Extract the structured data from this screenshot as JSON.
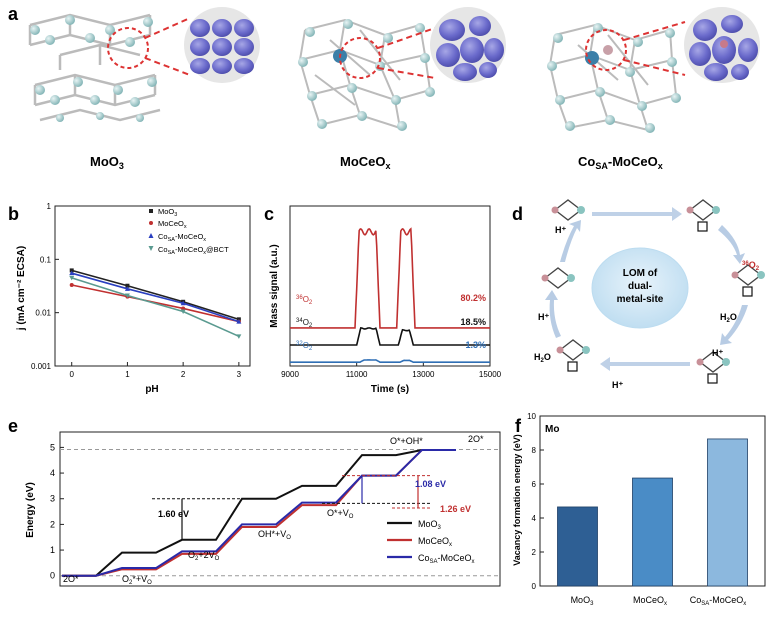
{
  "panel_labels": [
    "a",
    "b",
    "c",
    "d",
    "e",
    "f"
  ],
  "panel_a": {
    "structures": [
      {
        "label_main": "MoO",
        "label_sub": "3",
        "label_main2": "",
        "label_sub2": ""
      },
      {
        "label_main": "MoCeO",
        "label_sub": "x",
        "label_main2": "",
        "label_sub2": ""
      },
      {
        "label_main": "Co",
        "label_sub": "SA",
        "label_main2": "-MoCeO",
        "label_sub2": "x"
      }
    ]
  },
  "panel_b": {
    "ylabel": "j (mA cm⁻² ECSA)",
    "xlabel": "pH",
    "yticks": [
      "0.001",
      "0.01",
      "0.1",
      "1"
    ],
    "xticks": [
      "0",
      "1",
      "2",
      "3"
    ],
    "legend": [
      {
        "main": "MoO",
        "sub": "3",
        "tail": "",
        "color": "#222222",
        "marker": "square"
      },
      {
        "main": "MoCeO",
        "sub": "x",
        "tail": "",
        "color": "#c03030",
        "marker": "circle"
      },
      {
        "main": "Co",
        "sub": "SA",
        "tail": "-MoCeO",
        "tail_sub": "x",
        "color": "#2a3fc0",
        "marker": "triangle"
      },
      {
        "main": "Co",
        "sub": "SA",
        "tail": "-MoCeO",
        "tail_sub": "x",
        "tail2": "@BCT",
        "color": "#5a9a90",
        "marker": "triangle-down"
      }
    ]
  },
  "panel_c": {
    "ylabel": "Mass signal (a.u.)",
    "xlabel": "Time (s)",
    "xticks": [
      "9000",
      "11000",
      "13000",
      "15000"
    ],
    "traces": [
      {
        "sup": "36",
        "name": "O",
        "sub": "2",
        "pct": "80.2%",
        "color": "#c03030"
      },
      {
        "sup": "34",
        "name": "O",
        "sub": "2",
        "pct": "18.5%",
        "color": "#111111"
      },
      {
        "sup": "32",
        "name": "O",
        "sub": "2",
        "pct": "1.3%",
        "color": "#2f6fb5"
      }
    ]
  },
  "panel_d": {
    "center_text": [
      "LOM of",
      "dual-",
      "metal-site"
    ],
    "labels": {
      "h1": "H⁺",
      "h2": "H⁺",
      "h3": "H⁺",
      "h4": "H⁺",
      "o2_sup": "36",
      "o2": "O",
      "o2_sub": "2",
      "h2o_a": "H",
      "h2o_sub": "2",
      "h2o_b": "O"
    }
  },
  "panel_e": {
    "ylabel": "Energy (eV)",
    "yticks": [
      "0",
      "1",
      "2",
      "3",
      "4",
      "5"
    ],
    "annotations": {
      "start": "2O*",
      "end": "2O*",
      "o2v": "O",
      "o2v_sub": "2",
      "o2v_tail": "*+V",
      "o2v_tail_sub": "O",
      "o22v": "O",
      "o22v_sub": "2",
      "o22v_tail": "+2V",
      "o22v_tail_sub": "O",
      "ohv": "OH*+V",
      "ohv_sub": "O",
      "ov": "O*+V",
      "ov_sub": "O",
      "ooh": "O*+OH*",
      "d160": "1.60 eV",
      "d108": "1.08 eV",
      "d126": "1.26 eV"
    },
    "legend": [
      {
        "main": "MoO",
        "sub": "3",
        "tail": "",
        "color": "#111111"
      },
      {
        "main": "MoCeO",
        "sub": "x",
        "tail": "",
        "color": "#c03030"
      },
      {
        "main": "Co",
        "sub": "SA",
        "tail": "-MoCeO",
        "tail_sub": "x",
        "color": "#2a2aa8"
      }
    ]
  },
  "panel_f": {
    "tag": "Mo",
    "ylabel": "Vacancy formation energy (eV)",
    "yticks": [
      "0",
      "2",
      "4",
      "6",
      "8",
      "10"
    ],
    "categories": [
      {
        "main": "MoO",
        "sub": "3",
        "tail": ""
      },
      {
        "main": "MoCeO",
        "sub": "x",
        "tail": ""
      },
      {
        "main": "Co",
        "sub": "SA",
        "tail": "-MoCeO",
        "tail_sub": "x"
      }
    ]
  },
  "chart_data": [
    {
      "type": "line",
      "panel": "b",
      "xlabel": "pH",
      "ylabel": "j (mA cm-2 ECSA)",
      "yscale": "log",
      "ylim": [
        0.001,
        1
      ],
      "xlim": [
        -0.3,
        3.2
      ],
      "x": [
        0,
        1,
        2,
        3
      ],
      "series": [
        {
          "name": "MoO3",
          "values": [
            0.062,
            0.032,
            0.016,
            0.0075
          ]
        },
        {
          "name": "MoCeOx",
          "values": [
            0.033,
            0.02,
            0.012,
            0.0068
          ]
        },
        {
          "name": "CoSA-MoCeOx",
          "values": [
            0.055,
            0.028,
            0.015,
            0.0068
          ]
        },
        {
          "name": "CoSA-MoCeOx@BCT",
          "values": [
            0.045,
            0.021,
            0.0105,
            0.0036
          ]
        }
      ]
    },
    {
      "type": "line",
      "panel": "c",
      "xlabel": "Time (s)",
      "ylabel": "Mass signal (a.u.)",
      "xlim": [
        9000,
        15000
      ],
      "series": [
        {
          "name": "36O2",
          "pct": 80.2,
          "baseline": 1.0,
          "peaks": [
            {
              "start": 10950,
              "end": 11700,
              "height": 2.6
            },
            {
              "start": 12200,
              "end": 12750,
              "height": 2.6
            }
          ]
        },
        {
          "name": "34O2",
          "pct": 18.5,
          "baseline": 0.55,
          "peaks": [
            {
              "start": 11000,
              "end": 11700,
              "height": 0.45
            },
            {
              "start": 12250,
              "end": 12700,
              "height": 0.4
            }
          ]
        },
        {
          "name": "32O2",
          "pct": 1.3,
          "baseline": 0.1,
          "peaks": [
            {
              "start": 11100,
              "end": 11700,
              "height": 0.06
            },
            {
              "start": 12300,
              "end": 12700,
              "height": 0.05
            }
          ]
        }
      ]
    },
    {
      "type": "line",
      "panel": "e",
      "ylabel": "Energy (eV)",
      "ylim": [
        -0.4,
        5.6
      ],
      "series": [
        {
          "name": "MoO3",
          "levels": [
            0,
            0.9,
            1.4,
            3.0,
            3.5,
            4.7,
            4.9
          ]
        },
        {
          "name": "MoCeOx",
          "levels": [
            0,
            0.25,
            0.85,
            1.9,
            2.75,
            3.9,
            4.9
          ]
        },
        {
          "name": "CoSA-MoCeOx",
          "levels": [
            0,
            0.3,
            0.95,
            2.0,
            2.85,
            3.9,
            4.9
          ]
        }
      ]
    },
    {
      "type": "bar",
      "panel": "f",
      "ylabel": "Vacancy formation energy (eV)",
      "ylim": [
        0,
        10
      ],
      "categories": [
        "MoO3",
        "MoCeOx",
        "CoSA-MoCeOx"
      ],
      "values": [
        4.65,
        6.35,
        8.65
      ],
      "colors": [
        "#2e5f94",
        "#4a8cc6",
        "#8cb8de"
      ]
    }
  ]
}
